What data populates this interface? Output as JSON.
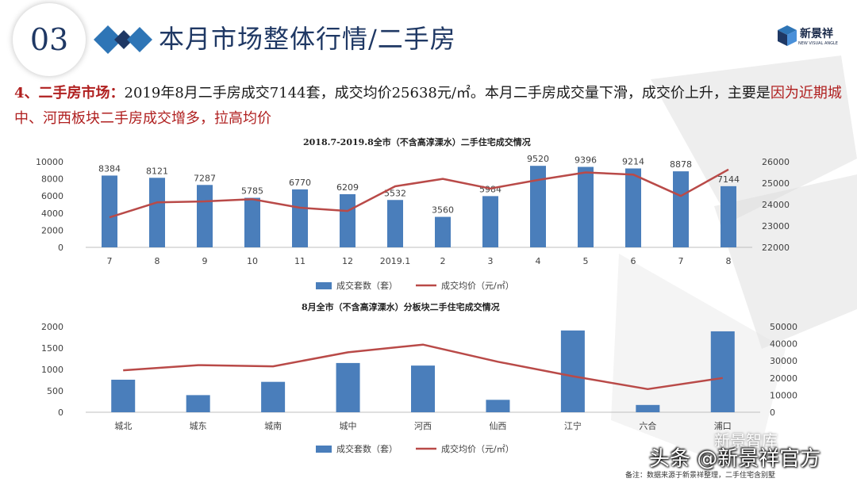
{
  "header": {
    "section_number": "03",
    "title": "本月市场整体行情/二手房",
    "logo_text": "新景祥",
    "logo_subtext": "NEW VISUAL ANGLE"
  },
  "paragraph": {
    "label": "4、二手房市场：",
    "text_before": "2019年8月二手房成交7144套，成交均价25638元/㎡。本月二手房成交量下滑，成交价上升，主要是",
    "highlight": "因为近期城中、河西板块二手房成交增多，拉高均价"
  },
  "colors": {
    "bar": "#4a7ebb",
    "line": "#b94a48",
    "title": "#1f3864",
    "highlight": "#b02020"
  },
  "chart_data": [
    {
      "type": "bar",
      "title": "2018.7-2019.8全市（不含高淳溧水）二手住宅成交情况",
      "categories": [
        "7",
        "8",
        "9",
        "10",
        "11",
        "12",
        "2019.1",
        "2",
        "3",
        "4",
        "5",
        "6",
        "7",
        "8"
      ],
      "series": [
        {
          "name": "成交套数（套）",
          "type": "bar",
          "axis": "left",
          "values": [
            8384,
            8121,
            7287,
            5785,
            6770,
            6209,
            5532,
            3560,
            5984,
            9520,
            9396,
            9214,
            8878,
            7144
          ]
        },
        {
          "name": "成交均价（元/㎡）",
          "type": "line",
          "axis": "right",
          "values": [
            23400,
            24100,
            24150,
            24250,
            23850,
            23700,
            24850,
            25200,
            24750,
            25150,
            25500,
            25400,
            24400,
            25638
          ]
        }
      ],
      "y_left": {
        "lim": [
          0,
          10000
        ],
        "ticks": [
          "0",
          "2000",
          "4000",
          "6000",
          "8000",
          "10000"
        ]
      },
      "y_right": {
        "lim": [
          22000,
          26000
        ],
        "ticks": [
          "22000",
          "23000",
          "24000",
          "25000",
          "26000"
        ]
      },
      "data_labels": [
        "8384",
        "8121",
        "7287",
        "5785",
        "6770",
        "6209",
        "5532",
        "3560",
        "5984",
        "9520",
        "9396",
        "9214",
        "8878",
        "7144"
      ],
      "grid": false,
      "legend": "bottom"
    },
    {
      "type": "bar",
      "title": "8月全市（不含高淳溧水）分板块二手住宅成交情况",
      "categories": [
        "城北",
        "城东",
        "城南",
        "城中",
        "河西",
        "仙西",
        "江宁",
        "六合",
        "浦口"
      ],
      "series": [
        {
          "name": "成交套数（套）",
          "type": "bar",
          "axis": "left",
          "values": [
            760,
            400,
            710,
            1150,
            1090,
            290,
            1910,
            170,
            1890
          ]
        },
        {
          "name": "成交均价（元/㎡）",
          "type": "line",
          "axis": "right",
          "values": [
            24500,
            27500,
            26800,
            35000,
            39500,
            29500,
            21000,
            13500,
            20000
          ]
        }
      ],
      "y_left": {
        "lim": [
          0,
          2000
        ],
        "ticks": [
          "0",
          "500",
          "1000",
          "1500",
          "2000"
        ]
      },
      "y_right": {
        "lim": [
          0,
          50000
        ],
        "ticks": [
          "0",
          "10000",
          "20000",
          "30000",
          "40000",
          "50000"
        ]
      },
      "grid": false,
      "legend": "bottom"
    }
  ],
  "footer": {
    "note": "备注：数据来源于新景祥整理，二手住宅含别墅",
    "brand": "头条 @新景祥官方",
    "watermark": "新景智库"
  }
}
